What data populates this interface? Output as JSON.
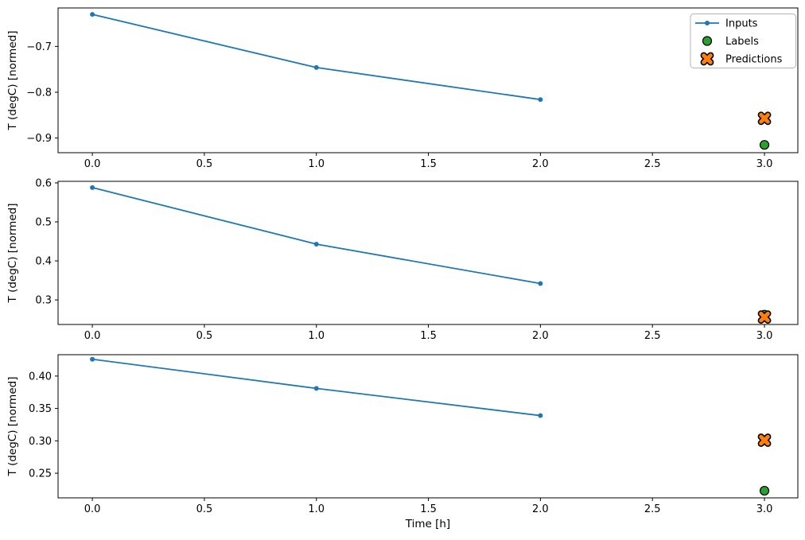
{
  "figure": {
    "background": "#ffffff",
    "xlabel": "Time [h]",
    "ylabel": "T (degC) [normed]",
    "legend": {
      "position": "upper right",
      "entries": [
        {
          "label": "Inputs",
          "marker": "line-dot",
          "color": "#1f77b4",
          "edge": "#1f77b4"
        },
        {
          "label": "Labels",
          "marker": "circle",
          "color": "#2ca02c",
          "edge": "#000000"
        },
        {
          "label": "Predictions",
          "marker": "x",
          "color": "#ff7f0e",
          "edge": "#000000"
        }
      ]
    }
  },
  "chart_data": [
    {
      "type": "line",
      "title": "",
      "xlabel": "",
      "ylabel": "T (degC) [normed]",
      "xlim": [
        -0.153,
        3.149
      ],
      "ylim": [
        -0.932,
        -0.616
      ],
      "grid": false,
      "x_ticks": {
        "values": [
          0.0,
          0.5,
          1.0,
          1.5,
          2.0,
          2.5,
          3.0
        ],
        "labels": [
          "0.0",
          "0.5",
          "1.0",
          "1.5",
          "2.0",
          "2.5",
          "3.0"
        ]
      },
      "y_ticks": {
        "values": [
          -0.7,
          -0.8,
          -0.9
        ],
        "labels": [
          "−0.7",
          "−0.8",
          "−0.9"
        ]
      },
      "legend_visible": true,
      "series": [
        {
          "name": "Inputs",
          "kind": "line+marker",
          "x": [
            0.0,
            1.0,
            2.0
          ],
          "y": [
            -0.63,
            -0.746,
            -0.816
          ]
        },
        {
          "name": "Labels",
          "kind": "scatter-circle",
          "x": [
            3.0
          ],
          "y": [
            -0.915
          ]
        },
        {
          "name": "Predictions",
          "kind": "scatter-x",
          "x": [
            3.0
          ],
          "y": [
            -0.857
          ]
        }
      ]
    },
    {
      "type": "line",
      "title": "",
      "xlabel": "",
      "ylabel": "T (degC) [normed]",
      "xlim": [
        -0.153,
        3.149
      ],
      "ylim": [
        0.237,
        0.604
      ],
      "grid": false,
      "x_ticks": {
        "values": [
          0.0,
          0.5,
          1.0,
          1.5,
          2.0,
          2.5,
          3.0
        ],
        "labels": [
          "0.0",
          "0.5",
          "1.0",
          "1.5",
          "2.0",
          "2.5",
          "3.0"
        ]
      },
      "y_ticks": {
        "values": [
          0.3,
          0.4,
          0.5,
          0.6
        ],
        "labels": [
          "0.3",
          "0.4",
          "0.5",
          "0.6"
        ]
      },
      "legend_visible": false,
      "series": [
        {
          "name": "Inputs",
          "kind": "line+marker",
          "x": [
            0.0,
            1.0,
            2.0
          ],
          "y": [
            0.588,
            0.443,
            0.342
          ]
        },
        {
          "name": "Labels",
          "kind": "scatter-circle",
          "x": [
            3.0
          ],
          "y": [
            0.262
          ]
        },
        {
          "name": "Predictions",
          "kind": "scatter-x",
          "x": [
            3.0
          ],
          "y": [
            0.256
          ]
        }
      ]
    },
    {
      "type": "line",
      "title": "",
      "xlabel": "Time [h]",
      "ylabel": "T (degC) [normed]",
      "xlim": [
        -0.153,
        3.149
      ],
      "ylim": [
        0.212,
        0.433
      ],
      "grid": false,
      "x_ticks": {
        "values": [
          0.0,
          0.5,
          1.0,
          1.5,
          2.0,
          2.5,
          3.0
        ],
        "labels": [
          "0.0",
          "0.5",
          "1.0",
          "1.5",
          "2.0",
          "2.5",
          "3.0"
        ]
      },
      "y_ticks": {
        "values": [
          0.25,
          0.3,
          0.35,
          0.4
        ],
        "labels": [
          "0.25",
          "0.30",
          "0.35",
          "0.40"
        ]
      },
      "legend_visible": false,
      "series": [
        {
          "name": "Inputs",
          "kind": "line+marker",
          "x": [
            0.0,
            1.0,
            2.0
          ],
          "y": [
            0.426,
            0.381,
            0.339
          ]
        },
        {
          "name": "Labels",
          "kind": "scatter-circle",
          "x": [
            3.0
          ],
          "y": [
            0.223
          ]
        },
        {
          "name": "Predictions",
          "kind": "scatter-x",
          "x": [
            3.0
          ],
          "y": [
            0.301
          ]
        }
      ]
    }
  ],
  "colors": {
    "inputs": "#1f77b4",
    "labels": "#2ca02c",
    "predictions": "#ff7f0e",
    "marker_edge": "#000000",
    "spine": "#000000",
    "legend_border": "#b3b3b3",
    "legend_bg": "#ffffff"
  }
}
